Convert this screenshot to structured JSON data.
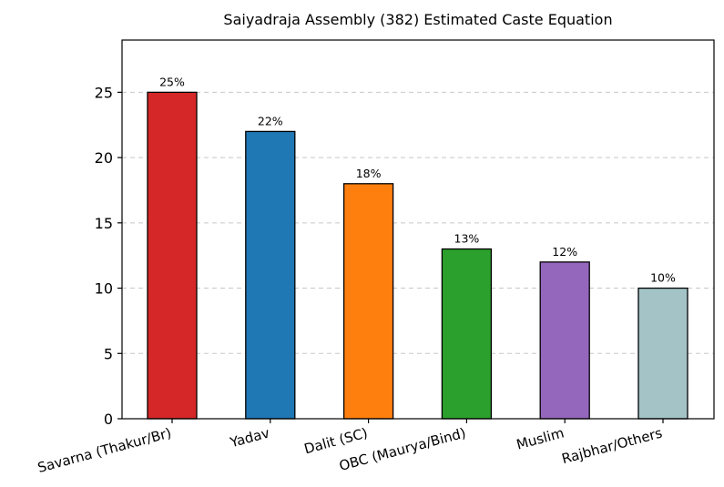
{
  "chart_data": {
    "type": "bar",
    "title": "Saiyadraja Assembly (382) Estimated Caste Equation",
    "xlabel": "",
    "ylabel": "",
    "categories": [
      "Savarna (Thakur/Br)",
      "Yadav",
      "Dalit (SC)",
      "OBC (Maurya/Bind)",
      "Muslim",
      "Rajbhar/Others"
    ],
    "values": [
      25,
      22,
      18,
      13,
      12,
      10
    ],
    "data_labels": [
      "25%",
      "22%",
      "18%",
      "13%",
      "12%",
      "10%"
    ],
    "colors": [
      "#d62728",
      "#1f77b4",
      "#ff7f0e",
      "#2ca02c",
      "#9467bd",
      "#a3c3c6"
    ],
    "ylim": [
      0,
      29
    ],
    "yticks": [
      0,
      5,
      10,
      15,
      20,
      25
    ],
    "grid": "y-dashed",
    "legend": "none"
  }
}
